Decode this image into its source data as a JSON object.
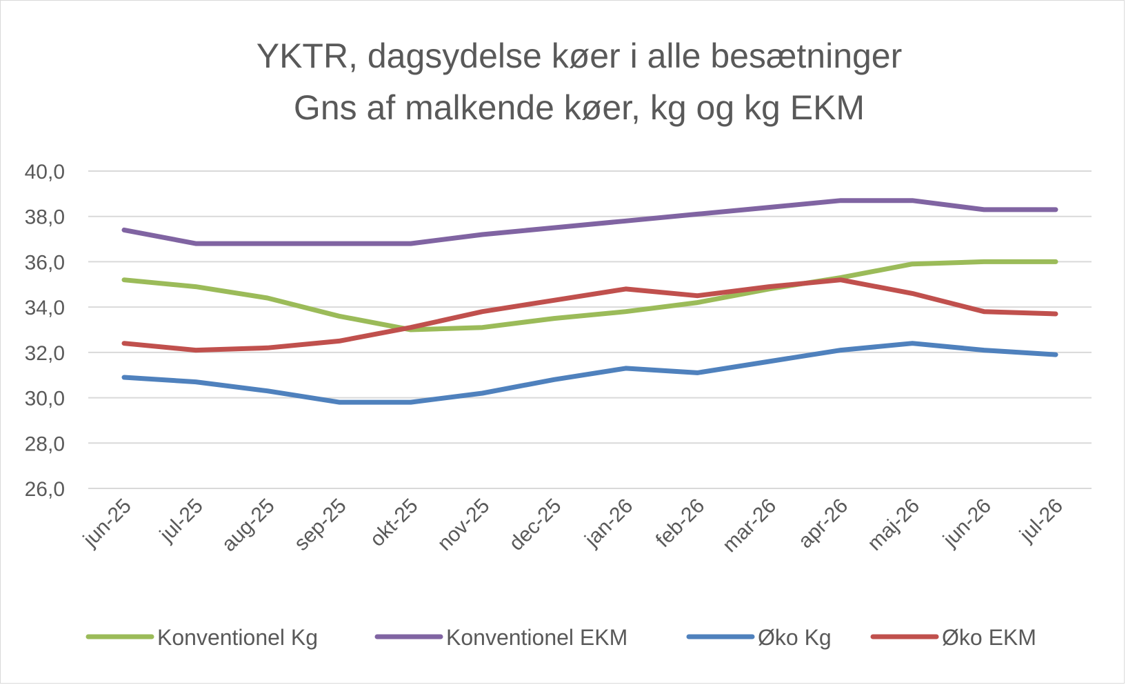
{
  "chart_data": {
    "type": "line",
    "title": "YKTR, dagsydelse køer i alle besætninger",
    "subtitle": "Gns af malkende køer, kg og kg EKM",
    "xlabel": "",
    "ylabel": "",
    "categories": [
      "jun-25",
      "jul-25",
      "aug-25",
      "sep-25",
      "okt-25",
      "nov-25",
      "dec-25",
      "jan-26",
      "feb-26",
      "mar-26",
      "apr-26",
      "maj-26",
      "jun-26",
      "jul-26"
    ],
    "ylim": [
      26,
      40
    ],
    "yticks": [
      "26,0",
      "28,0",
      "30,0",
      "32,0",
      "34,0",
      "36,0",
      "38,0",
      "40,0"
    ],
    "ytick_values": [
      26,
      28,
      30,
      32,
      34,
      36,
      38,
      40
    ],
    "grid": true,
    "legend_position": "bottom",
    "series": [
      {
        "name": "Konventionel Kg",
        "color": "#9bbb59",
        "values": [
          35.2,
          34.9,
          34.4,
          33.6,
          33.0,
          33.1,
          33.5,
          33.8,
          34.2,
          34.8,
          35.3,
          35.9,
          36.0,
          36.0
        ]
      },
      {
        "name": "Konventionel EKM",
        "color": "#8064a2",
        "values": [
          37.4,
          36.8,
          36.8,
          36.8,
          36.8,
          37.2,
          37.5,
          37.8,
          38.1,
          38.4,
          38.7,
          38.7,
          38.3,
          38.3
        ]
      },
      {
        "name": "Øko Kg",
        "color": "#4f81bd",
        "values": [
          30.9,
          30.7,
          30.3,
          29.8,
          29.8,
          30.2,
          30.8,
          31.3,
          31.1,
          31.6,
          32.1,
          32.4,
          32.1,
          31.9
        ]
      },
      {
        "name": "Øko EKM",
        "color": "#c0504d",
        "values": [
          32.4,
          32.1,
          32.2,
          32.5,
          33.1,
          33.8,
          34.3,
          34.8,
          34.5,
          34.9,
          35.2,
          34.6,
          33.8,
          33.7
        ]
      }
    ]
  }
}
